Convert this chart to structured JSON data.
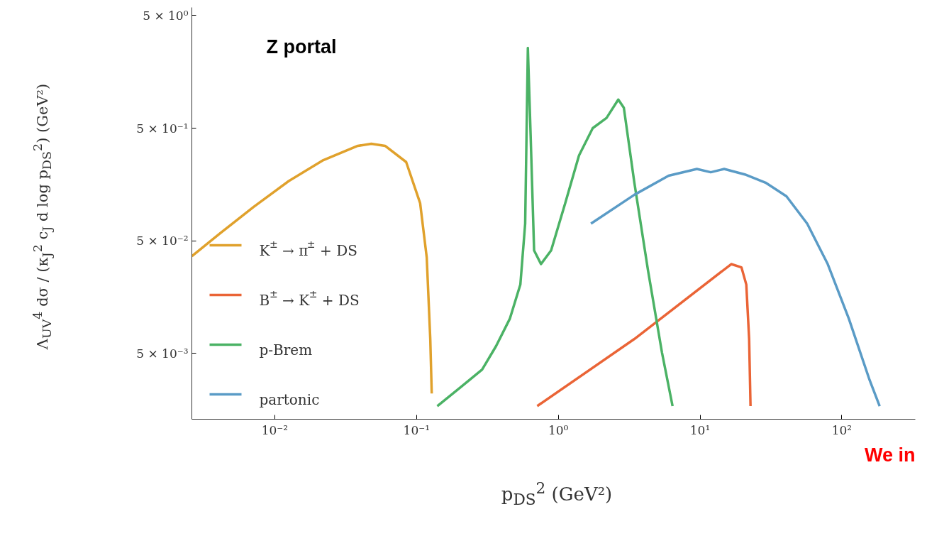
{
  "chart_data": {
    "type": "line",
    "xlabel": "p$_{DS}$$^{2}$ (GeV²)",
    "ylabel": "Λ$_{UV}$$^{4}$ dσ / (κ$_{J}$$^{2}$ c$_{J}$ d log p$_{DS}$$^{2}$) (GeV²)",
    "annotations": [
      "Z portal",
      "We in"
    ],
    "log": "xy",
    "xlim": [
      0.0026,
      330
    ],
    "ylim": [
      0.0013,
      5.9
    ],
    "xticks": [
      {
        "value": 0.01,
        "label": "10⁻²"
      },
      {
        "value": 0.1,
        "label": "10⁻¹"
      },
      {
        "value": 1,
        "label": "10⁰"
      },
      {
        "value": 10,
        "label": "10¹"
      },
      {
        "value": 100,
        "label": "10²"
      }
    ],
    "yticks": [
      {
        "value": 0.005,
        "label": "5 × 10⁻³"
      },
      {
        "value": 0.05,
        "label": "5 × 10⁻²"
      },
      {
        "value": 0.5,
        "label": "5 × 10⁻¹"
      },
      {
        "value": 5,
        "label": "5 × 10⁰"
      }
    ],
    "grid": false,
    "legend": "bottom left",
    "line_style": "solid",
    "marker": "none",
    "series": [
      {
        "name": "K$^{±}$ → π$^{±}$ + DS",
        "color": "#e0a12c",
        "x": [
          0.0026,
          0.0041,
          0.0071,
          0.0125,
          0.022,
          0.0385,
          0.048,
          0.06,
          0.0845,
          0.106,
          0.118,
          0.125,
          0.128
        ],
        "values": [
          0.0365,
          0.058,
          0.1,
          0.169,
          0.26,
          0.348,
          0.363,
          0.348,
          0.25,
          0.108,
          0.0356,
          0.0067,
          0.0022
        ]
      },
      {
        "name": "B$^{±}$ → K$^{±}$ + DS",
        "color": "#ea6436",
        "x": [
          0.71,
          3.44,
          16.6,
          19.6,
          21.2,
          22.2,
          22.7
        ],
        "values": [
          0.0017,
          0.0067,
          0.031,
          0.029,
          0.0204,
          0.0067,
          0.0017
        ]
      },
      {
        "name": "p-Brem",
        "color": "#4bb265",
        "x": [
          0.14,
          0.207,
          0.29,
          0.364,
          0.456,
          0.54,
          0.584,
          0.61,
          0.638,
          0.675,
          0.755,
          0.89,
          1.12,
          1.4,
          1.75,
          2.19,
          2.65,
          2.9,
          3.44,
          4.3,
          5.39,
          6.4
        ],
        "values": [
          0.0017,
          0.00253,
          0.00358,
          0.0058,
          0.0102,
          0.0204,
          0.071,
          2.58,
          0.435,
          0.041,
          0.031,
          0.041,
          0.108,
          0.286,
          0.5,
          0.616,
          0.897,
          0.76,
          0.164,
          0.027,
          0.00507,
          0.0017
        ]
      },
      {
        "name": "partonic",
        "color": "#5a9bc6",
        "x": [
          1.7,
          3.44,
          6.0,
          9.5,
          11.9,
          14.8,
          20.7,
          29,
          40.7,
          57,
          79.6,
          112,
          157,
          185
        ],
        "values": [
          0.071,
          0.128,
          0.189,
          0.217,
          0.203,
          0.217,
          0.194,
          0.164,
          0.124,
          0.071,
          0.031,
          0.0102,
          0.0029,
          0.0017
        ]
      }
    ]
  }
}
